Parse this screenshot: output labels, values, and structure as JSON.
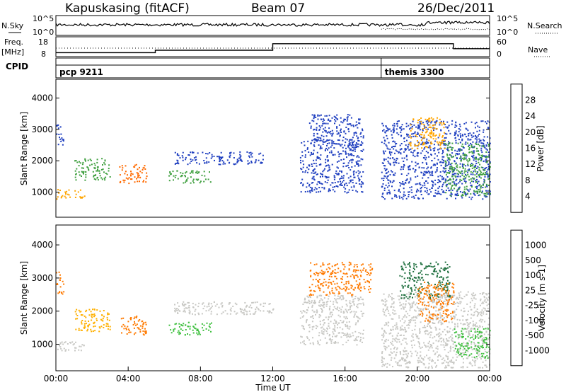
{
  "header": {
    "station": "Kapuskasing (fitACF)",
    "beam": "Beam 07",
    "date": "26/Dec/2011"
  },
  "status_panels": {
    "nsky_label": "N.Sky",
    "nsearch_label": "N.Search",
    "noise_ticks": [
      "10^5",
      "10^0"
    ],
    "freq_label": "Freq.",
    "freq_unit": "[MHz]",
    "freq_ticks": [
      "18",
      "8"
    ],
    "nave_label": "Nave",
    "nave_ticks": [
      "60",
      "0"
    ],
    "cpid_label": "CPID",
    "cpid_segments": [
      {
        "name": "pcp 9211",
        "start_hour": 0,
        "end_hour": 18
      },
      {
        "name": "themis 3300",
        "start_hour": 18,
        "end_hour": 24
      }
    ],
    "freq_series_hours": [
      0,
      5.5,
      5.5,
      12,
      12,
      22,
      22,
      24
    ],
    "freq_series_mhz": [
      10,
      10,
      11.2,
      11.2,
      14.5,
      14.5,
      12,
      12
    ]
  },
  "chart_data": [
    {
      "type": "heatmap",
      "name": "power",
      "xlabel": "",
      "ylabel": "Slant Range [km]",
      "x_unit": "hours UT",
      "xlim": [
        0,
        24
      ],
      "ylim": [
        200,
        4600
      ],
      "y_ticks": [
        1000,
        2000,
        3000,
        4000
      ],
      "colorbar": {
        "label": "Power [dB]",
        "ticks": [
          "28",
          "24",
          "20",
          "16",
          "12",
          "8",
          "4"
        ],
        "colors": [
          "#ff0000",
          "#ff6a00",
          "#ffa500",
          "#ffe000",
          "#a0d020",
          "#40a040",
          "#208070",
          "#2040c0",
          "#0020ff"
        ]
      },
      "echo_regions": [
        {
          "x0": 0.0,
          "x1": 0.4,
          "y0": 2500,
          "y1": 3200,
          "color": "#2040c0"
        },
        {
          "x0": 0.0,
          "x1": 1.6,
          "y0": 800,
          "y1": 1100,
          "color": "#ffa500"
        },
        {
          "x0": 1.0,
          "x1": 3.0,
          "y0": 1400,
          "y1": 2100,
          "color": "#40a040"
        },
        {
          "x0": 3.5,
          "x1": 5.0,
          "y0": 1300,
          "y1": 1900,
          "color": "#ff6a00"
        },
        {
          "x0": 6.2,
          "x1": 8.6,
          "y0": 1300,
          "y1": 1700,
          "color": "#40a040"
        },
        {
          "x0": 6.5,
          "x1": 11.5,
          "y0": 1900,
          "y1": 2300,
          "color": "#2040c0"
        },
        {
          "x0": 13.5,
          "x1": 17.0,
          "y0": 1000,
          "y1": 2700,
          "color": "#2040c0"
        },
        {
          "x0": 14.0,
          "x1": 17.0,
          "y0": 2500,
          "y1": 3500,
          "color": "#2040c0"
        },
        {
          "x0": 18.0,
          "x1": 24.0,
          "y0": 800,
          "y1": 3300,
          "color": "#2040c0"
        },
        {
          "x0": 19.5,
          "x1": 21.5,
          "y0": 2400,
          "y1": 3400,
          "color": "#ffa500"
        },
        {
          "x0": 21.5,
          "x1": 24.0,
          "y0": 900,
          "y1": 2600,
          "color": "#40a040"
        }
      ]
    },
    {
      "type": "heatmap",
      "name": "velocity",
      "xlabel": "Time UT",
      "ylabel": "Slant Range [km]",
      "x_unit": "hours UT",
      "xlim": [
        0,
        24
      ],
      "ylim": [
        200,
        4600
      ],
      "x_ticks": [
        "00:00",
        "04:00",
        "08:00",
        "12:00",
        "16:00",
        "20:00",
        "00:00"
      ],
      "y_ticks": [
        1000,
        2000,
        3000,
        4000
      ],
      "colorbar": {
        "label": "Velocity [m s-1]",
        "ticks": [
          "1000",
          "500",
          "100",
          "25",
          "-25",
          "-100",
          "-500",
          "-1000"
        ],
        "colors": [
          "#2040c0",
          "#2050e0",
          "#207040",
          "#40c040",
          "#c8c8c4",
          "#ffb000",
          "#ff7a00",
          "#ff4000",
          "#ff0000"
        ]
      },
      "echo_regions": [
        {
          "x0": 0.0,
          "x1": 0.4,
          "y0": 2500,
          "y1": 3200,
          "color": "#ff7a00"
        },
        {
          "x0": 0.0,
          "x1": 1.6,
          "y0": 800,
          "y1": 1100,
          "color": "#c8c8c4"
        },
        {
          "x0": 1.0,
          "x1": 3.0,
          "y0": 1400,
          "y1": 2100,
          "color": "#ffb000"
        },
        {
          "x0": 3.5,
          "x1": 5.0,
          "y0": 1300,
          "y1": 1900,
          "color": "#ff7a00"
        },
        {
          "x0": 6.2,
          "x1": 8.6,
          "y0": 1300,
          "y1": 1700,
          "color": "#40c040"
        },
        {
          "x0": 6.5,
          "x1": 12.0,
          "y0": 1900,
          "y1": 2300,
          "color": "#c8c8c4"
        },
        {
          "x0": 14.0,
          "x1": 17.5,
          "y0": 2500,
          "y1": 3500,
          "color": "#ff7a00"
        },
        {
          "x0": 13.5,
          "x1": 17.0,
          "y0": 1000,
          "y1": 2500,
          "color": "#c8c8c4"
        },
        {
          "x0": 18.0,
          "x1": 24.0,
          "y0": 300,
          "y1": 2600,
          "color": "#c8c8c4"
        },
        {
          "x0": 19.0,
          "x1": 21.8,
          "y0": 2400,
          "y1": 3500,
          "color": "#207040"
        },
        {
          "x0": 20.0,
          "x1": 22.0,
          "y0": 1700,
          "y1": 2900,
          "color": "#ff7a00"
        },
        {
          "x0": 22.0,
          "x1": 24.0,
          "y0": 600,
          "y1": 1500,
          "color": "#40c040"
        }
      ]
    }
  ]
}
